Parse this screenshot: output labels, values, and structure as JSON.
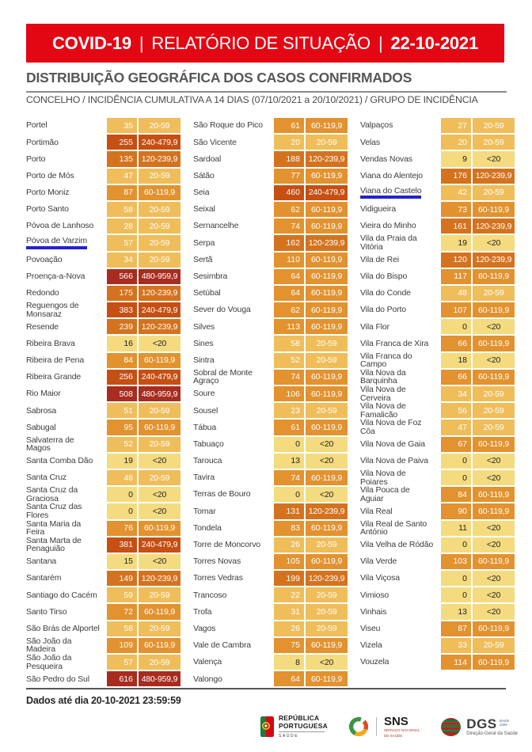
{
  "banner": {
    "product": "COVID-19",
    "title": "RELATÓRIO DE SITUAÇÃO",
    "date": "22-10-2021",
    "separator": "|",
    "bg_color": "#e20713"
  },
  "section": {
    "title": "DISTRIBUIÇÃO GEOGRÁFICA DOS CASOS CONFIRMADOS",
    "subtitle": "CONCELHO / INCIDÊNCIA CUMULATIVA A 14 DIAS (07/10/2021 a 20/10/2021) / GRUPO DE INCIDÊNCIA"
  },
  "incidence_groups": {
    "<20": {
      "bg": "#f5db80",
      "fg": "#1f1f1f"
    },
    "20-59": {
      "bg": "#efbd5a",
      "fg": "#ffffff"
    },
    "60-119,9": {
      "bg": "#e2922f",
      "fg": "#ffffff"
    },
    "120-239,9": {
      "bg": "#d4731f",
      "fg": "#ffffff"
    },
    "240-479,9": {
      "bg": "#c64f13",
      "fg": "#ffffff"
    },
    "480-959,9": {
      "bg": "#a82c1f",
      "fg": "#ffffff"
    }
  },
  "highlight_underline_color": "#2522cb",
  "table": {
    "columns": [
      {
        "rows": [
          {
            "name": "Portel",
            "cases": "35",
            "group": "20-59"
          },
          {
            "name": "Portimão",
            "cases": "255",
            "group": "240-479,9"
          },
          {
            "name": "Porto",
            "cases": "135",
            "group": "120-239,9"
          },
          {
            "name": "Porto de Mós",
            "cases": "47",
            "group": "20-59"
          },
          {
            "name": "Porto Moniz",
            "cases": "87",
            "group": "60-119,9"
          },
          {
            "name": "Porto Santo",
            "cases": "58",
            "group": "20-59"
          },
          {
            "name": "Póvoa de Lanhoso",
            "cases": "28",
            "group": "20-59"
          },
          {
            "name": "Póvoa de Varzim",
            "cases": "57",
            "group": "20-59",
            "underlined": true
          },
          {
            "name": "Povoação",
            "cases": "34",
            "group": "20-59"
          },
          {
            "name": "Proença-a-Nova",
            "cases": "566",
            "group": "480-959,9"
          },
          {
            "name": "Redondo",
            "cases": "175",
            "group": "120-239,9"
          },
          {
            "name": "Reguengos de Monsaraz",
            "cases": "383",
            "group": "240-479,9"
          },
          {
            "name": "Resende",
            "cases": "239",
            "group": "120-239,9"
          },
          {
            "name": "Ribeira Brava",
            "cases": "16",
            "group": "<20"
          },
          {
            "name": "Ribeira de Pena",
            "cases": "84",
            "group": "60-119,9"
          },
          {
            "name": "Ribeira Grande",
            "cases": "256",
            "group": "240-479,9"
          },
          {
            "name": "Rio Maior",
            "cases": "508",
            "group": "480-959,9"
          },
          {
            "name": "Sabrosa",
            "cases": "51",
            "group": "20-59"
          },
          {
            "name": "Sabugal",
            "cases": "95",
            "group": "60-119,9"
          },
          {
            "name": "Salvaterra de Magos",
            "cases": "52",
            "group": "20-59"
          },
          {
            "name": "Santa Comba Dão",
            "cases": "19",
            "group": "<20"
          },
          {
            "name": "Santa Cruz",
            "cases": "48",
            "group": "20-59"
          },
          {
            "name": "Santa Cruz da Graciosa",
            "cases": "0",
            "group": "<20"
          },
          {
            "name": "Santa Cruz das Flores",
            "cases": "0",
            "group": "<20"
          },
          {
            "name": "Santa Maria da Feira",
            "cases": "76",
            "group": "60-119,9"
          },
          {
            "name": "Santa Marta de Penaguião",
            "cases": "381",
            "group": "240-479,9"
          },
          {
            "name": "Santana",
            "cases": "15",
            "group": "<20"
          },
          {
            "name": "Santarém",
            "cases": "149",
            "group": "120-239,9"
          },
          {
            "name": "Santiago do Cacém",
            "cases": "59",
            "group": "20-59"
          },
          {
            "name": "Santo Tirso",
            "cases": "72",
            "group": "60-119,9"
          },
          {
            "name": "São Brás de Alportel",
            "cases": "58",
            "group": "20-59"
          },
          {
            "name": "São João da Madeira",
            "cases": "109",
            "group": "60-119,9"
          },
          {
            "name": "São João da Pesqueira",
            "cases": "57",
            "group": "20-59"
          },
          {
            "name": "São Pedro do Sul",
            "cases": "616",
            "group": "480-959,9"
          }
        ]
      },
      {
        "rows": [
          {
            "name": "São Roque do Pico",
            "cases": "61",
            "group": "60-119,9"
          },
          {
            "name": "São Vicente",
            "cases": "20",
            "group": "20-59"
          },
          {
            "name": "Sardoal",
            "cases": "188",
            "group": "120-239,9"
          },
          {
            "name": "Sátão",
            "cases": "77",
            "group": "60-119,9"
          },
          {
            "name": "Seia",
            "cases": "460",
            "group": "240-479,9"
          },
          {
            "name": "Seixal",
            "cases": "62",
            "group": "60-119,9"
          },
          {
            "name": "Sernancelhe",
            "cases": "74",
            "group": "60-119,9"
          },
          {
            "name": "Serpa",
            "cases": "162",
            "group": "120-239,9"
          },
          {
            "name": "Sertã",
            "cases": "110",
            "group": "60-119,9"
          },
          {
            "name": "Sesimbra",
            "cases": "64",
            "group": "60-119,9"
          },
          {
            "name": "Setúbal",
            "cases": "64",
            "group": "60-119,9"
          },
          {
            "name": "Sever do Vouga",
            "cases": "62",
            "group": "60-119,9"
          },
          {
            "name": "Silves",
            "cases": "113",
            "group": "60-119,9"
          },
          {
            "name": "Sines",
            "cases": "58",
            "group": "20-59"
          },
          {
            "name": "Sintra",
            "cases": "52",
            "group": "20-59"
          },
          {
            "name": "Sobral de Monte Agraço",
            "cases": "74",
            "group": "60-119,9"
          },
          {
            "name": "Soure",
            "cases": "106",
            "group": "60-119,9"
          },
          {
            "name": "Sousel",
            "cases": "23",
            "group": "20-59"
          },
          {
            "name": "Tábua",
            "cases": "61",
            "group": "60-119,9"
          },
          {
            "name": "Tabuaço",
            "cases": "0",
            "group": "<20"
          },
          {
            "name": "Tarouca",
            "cases": "13",
            "group": "<20"
          },
          {
            "name": "Tavira",
            "cases": "74",
            "group": "60-119,9"
          },
          {
            "name": "Terras de Bouro",
            "cases": "0",
            "group": "<20"
          },
          {
            "name": "Tomar",
            "cases": "131",
            "group": "120-239,9"
          },
          {
            "name": "Tondela",
            "cases": "83",
            "group": "60-119,9"
          },
          {
            "name": "Torre de Moncorvo",
            "cases": "26",
            "group": "20-59"
          },
          {
            "name": "Torres Novas",
            "cases": "105",
            "group": "60-119,9"
          },
          {
            "name": "Torres Vedras",
            "cases": "199",
            "group": "120-239,9"
          },
          {
            "name": "Trancoso",
            "cases": "22",
            "group": "20-59"
          },
          {
            "name": "Trofa",
            "cases": "31",
            "group": "20-59"
          },
          {
            "name": "Vagos",
            "cases": "26",
            "group": "20-59"
          },
          {
            "name": "Vale de Cambra",
            "cases": "75",
            "group": "60-119,9"
          },
          {
            "name": "Valença",
            "cases": "8",
            "group": "<20"
          },
          {
            "name": "Valongo",
            "cases": "64",
            "group": "60-119,9"
          }
        ]
      },
      {
        "rows": [
          {
            "name": "Valpaços",
            "cases": "27",
            "group": "20-59"
          },
          {
            "name": "Velas",
            "cases": "20",
            "group": "20-59"
          },
          {
            "name": "Vendas Novas",
            "cases": "9",
            "group": "<20"
          },
          {
            "name": "Viana do Alentejo",
            "cases": "176",
            "group": "120-239,9"
          },
          {
            "name": "Viana do Castelo",
            "cases": "42",
            "group": "20-59",
            "underlined": true
          },
          {
            "name": "Vidigueira",
            "cases": "73",
            "group": "60-119,9"
          },
          {
            "name": "Vieira do Minho",
            "cases": "161",
            "group": "120-239,9"
          },
          {
            "name": "Vila da Praia da Vitória",
            "cases": "19",
            "group": "<20"
          },
          {
            "name": "Vila de Rei",
            "cases": "120",
            "group": "120-239,9"
          },
          {
            "name": "Vila do Bispo",
            "cases": "117",
            "group": "60-119,9"
          },
          {
            "name": "Vila do Conde",
            "cases": "48",
            "group": "20-59"
          },
          {
            "name": "Vila do Porto",
            "cases": "107",
            "group": "60-119,9"
          },
          {
            "name": "Vila Flor",
            "cases": "0",
            "group": "<20"
          },
          {
            "name": "Vila Franca de Xira",
            "cases": "66",
            "group": "60-119,9"
          },
          {
            "name": "Vila Franca do Campo",
            "cases": "18",
            "group": "<20"
          },
          {
            "name": "Vila Nova da Barquinha",
            "cases": "66",
            "group": "60-119,9"
          },
          {
            "name": "Vila Nova de Cerveira",
            "cases": "34",
            "group": "20-59"
          },
          {
            "name": "Vila Nova de Famalicão",
            "cases": "56",
            "group": "20-59"
          },
          {
            "name": "Vila Nova de Foz Côa",
            "cases": "47",
            "group": "20-59"
          },
          {
            "name": "Vila Nova de Gaia",
            "cases": "67",
            "group": "60-119,9"
          },
          {
            "name": "Vila Nova de Paiva",
            "cases": "0",
            "group": "<20"
          },
          {
            "name": "Vila Nova de Poiares",
            "cases": "0",
            "group": "<20"
          },
          {
            "name": "Vila Pouca de Aguiar",
            "cases": "84",
            "group": "60-119,9"
          },
          {
            "name": "Vila Real",
            "cases": "90",
            "group": "60-119,9"
          },
          {
            "name": "Vila Real de Santo António",
            "cases": "11",
            "group": "<20"
          },
          {
            "name": "Vila Velha de Ródão",
            "cases": "0",
            "group": "<20"
          },
          {
            "name": "Vila Verde",
            "cases": "103",
            "group": "60-119,9"
          },
          {
            "name": "Vila Viçosa",
            "cases": "0",
            "group": "<20"
          },
          {
            "name": "Vimioso",
            "cases": "0",
            "group": "<20"
          },
          {
            "name": "Vinhais",
            "cases": "13",
            "group": "<20"
          },
          {
            "name": "Viseu",
            "cases": "87",
            "group": "60-119,9"
          },
          {
            "name": "Vizela",
            "cases": "33",
            "group": "20-59"
          },
          {
            "name": "Vouzela",
            "cases": "114",
            "group": "60-119,9"
          }
        ]
      }
    ]
  },
  "footer": {
    "note": "Dados até dia 20-10-2021 23:59:59",
    "logos": {
      "republica_line1": "REPÚBLICA",
      "republica_line2": "PORTUGUESA",
      "republica_sub": "SAÚDE",
      "sns_big": "SNS",
      "sns_small_1": "SERVIÇO NACIONAL",
      "sns_small_2": "DE SAÚDE",
      "dgs_big": "DGS",
      "dgs_desde_1": "desde",
      "dgs_desde_2": "1899",
      "dgs_small": "Direção-Geral da Saúde"
    }
  }
}
